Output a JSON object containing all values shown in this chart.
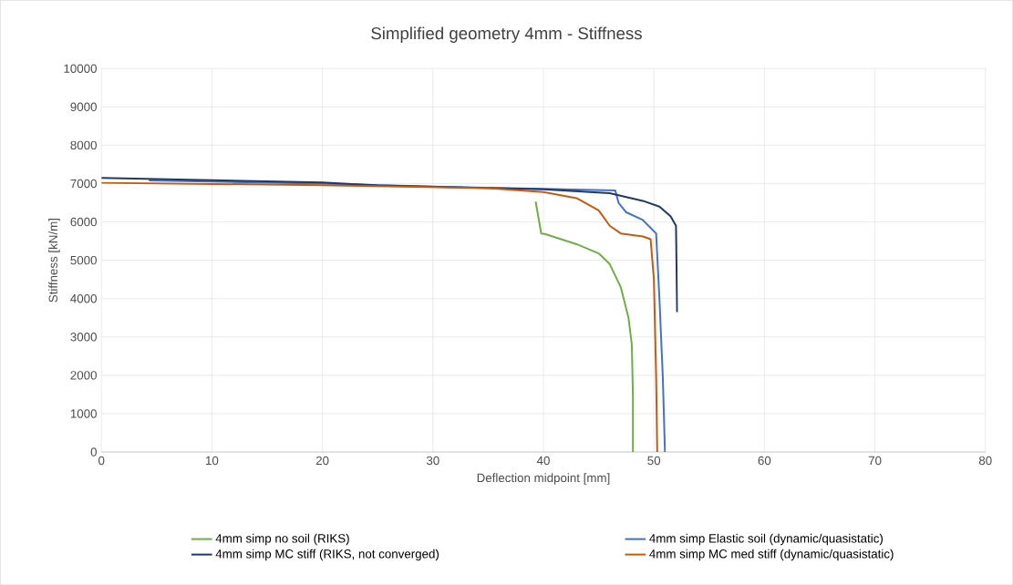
{
  "chart_data": {
    "type": "line",
    "title": "Simplified geometry 4mm - Stiffness",
    "xlabel": "Deflection midpoint [mm]",
    "ylabel": "Stiffness [kN/m]",
    "xlim": [
      0,
      80
    ],
    "xticks": [
      0,
      10,
      20,
      30,
      40,
      50,
      60,
      70,
      80
    ],
    "ylim": [
      0,
      10000
    ],
    "yticks": [
      0,
      1000,
      2000,
      3000,
      4000,
      5000,
      6000,
      7000,
      8000,
      9000,
      10000
    ],
    "grid": true,
    "legend": "bottom",
    "series": [
      {
        "name": "4mm simp no soil (RIKS)",
        "color": "#70ad47",
        "x": [
          39.3,
          39.8,
          40.2,
          43,
          45,
          46,
          47,
          47.7,
          48,
          48.1,
          48.1
        ],
        "values": [
          6530,
          5700,
          5680,
          5420,
          5180,
          4900,
          4300,
          3500,
          2800,
          1500,
          0
        ]
      },
      {
        "name": "4mm simp Elastic soil (dynamic/quasistatic)",
        "color": "#4472c4",
        "x": [
          4.3,
          20,
          30,
          40,
          46.5,
          46.8,
          47.5,
          49,
          50.2,
          50.5,
          50.8,
          51
        ],
        "values": [
          7080,
          7000,
          6920,
          6860,
          6820,
          6500,
          6250,
          6050,
          5700,
          4000,
          2000,
          0
        ]
      },
      {
        "name": "4mm simp MC stiff (RIKS, not converged)",
        "color": "#203864",
        "x": [
          0,
          20,
          25,
          40,
          46,
          49,
          50.5,
          51.5,
          52,
          52.1
        ],
        "values": [
          7150,
          7030,
          6950,
          6850,
          6750,
          6550,
          6400,
          6150,
          5900,
          3650
        ]
      },
      {
        "name": "4mm simp MC med stiff (dynamic/quasistatic)",
        "color": "#c55a11",
        "x": [
          0,
          20,
          35,
          40,
          43,
          45,
          46,
          47,
          49,
          49.7,
          50,
          50.2,
          50.3
        ],
        "values": [
          7020,
          6960,
          6880,
          6780,
          6620,
          6300,
          5900,
          5700,
          5620,
          5550,
          4500,
          2000,
          0
        ]
      }
    ]
  }
}
